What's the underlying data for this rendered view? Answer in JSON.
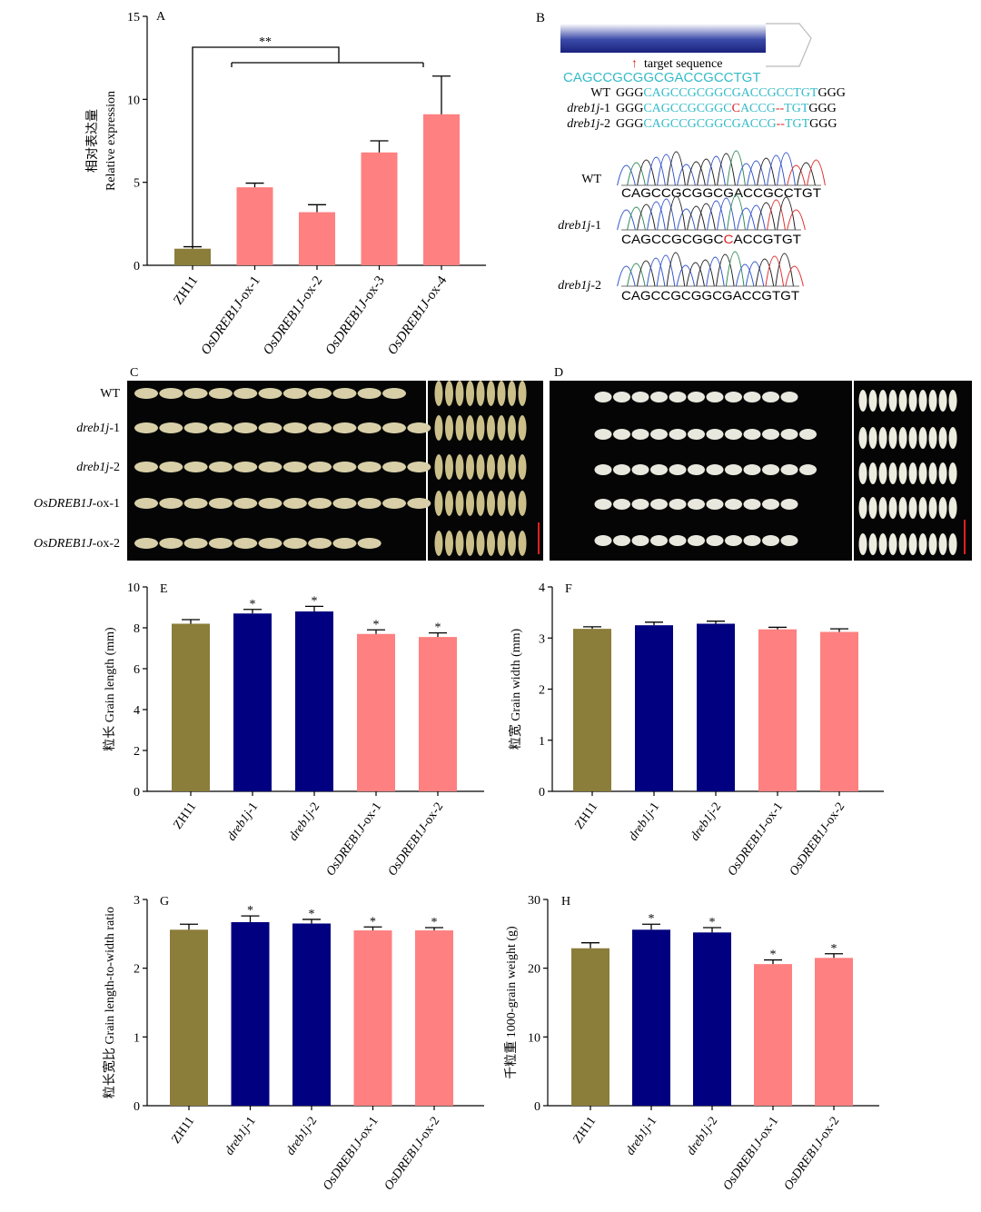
{
  "colors": {
    "zh11": "#8b7d3a",
    "mutant": "#000080",
    "ox": "#fe8080",
    "cyan": "#33bbc8",
    "red": "#e02020",
    "axis": "#000000"
  },
  "panel_b": {
    "label": "B",
    "arrow_label": "target sequence",
    "target_seq": "CAGCCGCGGCGACCGCCTGT",
    "alignment": [
      {
        "name": "WT",
        "pre": "GGG",
        "seq": "CAGCCGCGGCGACCGCCTGT",
        "mid": "",
        "post_seq": "",
        "tail": "GGG"
      },
      {
        "name": "dreb1j-1",
        "pre": "GGG",
        "seq": "CAGCCGCGGC",
        "mid": "C",
        "post_seq": "ACCG",
        "dash": "--",
        "seq2": "TGT",
        "tail": "GGG"
      },
      {
        "name": "dreb1j-2",
        "pre": "GGG",
        "seq": "CAGCCGCGGCGACCG",
        "dash": "--",
        "seq2": "TGT",
        "tail": "GGG"
      }
    ],
    "chromatograms": [
      {
        "name": "WT",
        "seq": "CAGCCGCGGCGACCGCCTGT"
      },
      {
        "name": "dreb1j-1",
        "seq_a": "CAGCCGCGGC",
        "seq_red": "C",
        "seq_b": "ACCGTGT"
      },
      {
        "name": "dreb1j-2",
        "seq": "CAGCCGCGGCGACCGTGT"
      }
    ]
  },
  "panel_c": {
    "label": "C",
    "rows": [
      "WT",
      "dreb1j-1",
      "dreb1j-2",
      "OsDREB1J-ox-1",
      "OsDREB1J-ox-2"
    ]
  },
  "panel_d": {
    "label": "D"
  },
  "chart_data": [
    {
      "type": "bar",
      "panel": "A",
      "ylabel_cn": "相对表达量",
      "ylabel": "Relative expression",
      "categories": [
        "ZH11",
        "OsDREB1J-ox-1",
        "OsDREB1J-ox-2",
        "OsDREB1J-ox-3",
        "OsDREB1J-ox-4"
      ],
      "values": [
        1.0,
        4.7,
        3.2,
        6.8,
        9.1
      ],
      "errors": [
        0.12,
        0.25,
        0.45,
        0.7,
        2.3
      ],
      "colors": [
        "zh11",
        "ox",
        "ox",
        "ox",
        "ox"
      ],
      "ylim": [
        0,
        15
      ],
      "yticks": [
        0,
        5,
        10,
        15
      ],
      "significance": "**"
    },
    {
      "type": "bar",
      "panel": "E",
      "ylabel_cn": "粒长",
      "ylabel": "Grain length (mm)",
      "categories": [
        "ZH11",
        "dreb1j-1",
        "dreb1j-2",
        "OsDREB1J-ox-1",
        "OsDREB1J-ox-2"
      ],
      "values": [
        8.2,
        8.7,
        8.8,
        7.7,
        7.55
      ],
      "errors": [
        0.2,
        0.2,
        0.25,
        0.2,
        0.2
      ],
      "colors": [
        "zh11",
        "mutant",
        "mutant",
        "ox",
        "ox"
      ],
      "stars": [
        "",
        "*",
        "*",
        "*",
        "*"
      ],
      "ylim": [
        0,
        10
      ],
      "yticks": [
        0,
        2,
        4,
        6,
        8,
        10
      ]
    },
    {
      "type": "bar",
      "panel": "F",
      "ylabel_cn": "粒宽",
      "ylabel": "Grain width (mm)",
      "categories": [
        "ZH11",
        "dreb1j-1",
        "dreb1j-2",
        "OsDREB1J-ox-1",
        "OsDREB1J-ox-2"
      ],
      "values": [
        3.18,
        3.25,
        3.28,
        3.17,
        3.12
      ],
      "errors": [
        0.04,
        0.06,
        0.05,
        0.04,
        0.06
      ],
      "colors": [
        "zh11",
        "mutant",
        "mutant",
        "ox",
        "ox"
      ],
      "stars": [
        "",
        "",
        "",
        "",
        ""
      ],
      "ylim": [
        0,
        4
      ],
      "yticks": [
        0,
        1,
        2,
        3,
        4
      ]
    },
    {
      "type": "bar",
      "panel": "G",
      "ylabel_cn": "粒长宽比",
      "ylabel": "Grain length-to-width ratio",
      "categories": [
        "ZH11",
        "dreb1j-1",
        "dreb1j-2",
        "OsDREB1J-ox-1",
        "OsDREB1J-ox-2"
      ],
      "values": [
        2.56,
        2.67,
        2.65,
        2.55,
        2.55
      ],
      "errors": [
        0.08,
        0.09,
        0.06,
        0.05,
        0.04
      ],
      "colors": [
        "zh11",
        "mutant",
        "mutant",
        "ox",
        "ox"
      ],
      "stars": [
        "",
        "*",
        "*",
        "*",
        "*"
      ],
      "ylim": [
        0,
        3
      ],
      "yticks": [
        0,
        1,
        2,
        3
      ]
    },
    {
      "type": "bar",
      "panel": "H",
      "ylabel_cn": "千粒重",
      "ylabel": "1000-grain weight (g)",
      "categories": [
        "ZH11",
        "dreb1j-1",
        "dreb1j-2",
        "OsDREB1J-ox-1",
        "OsDREB1J-ox-2"
      ],
      "values": [
        22.9,
        25.6,
        25.2,
        20.6,
        21.5
      ],
      "errors": [
        0.8,
        0.8,
        0.7,
        0.6,
        0.6
      ],
      "colors": [
        "zh11",
        "mutant",
        "mutant",
        "ox",
        "ox"
      ],
      "stars": [
        "",
        "*",
        "*",
        "*",
        "*"
      ],
      "ylim": [
        0,
        30
      ],
      "yticks": [
        0,
        10,
        20,
        30
      ]
    }
  ]
}
